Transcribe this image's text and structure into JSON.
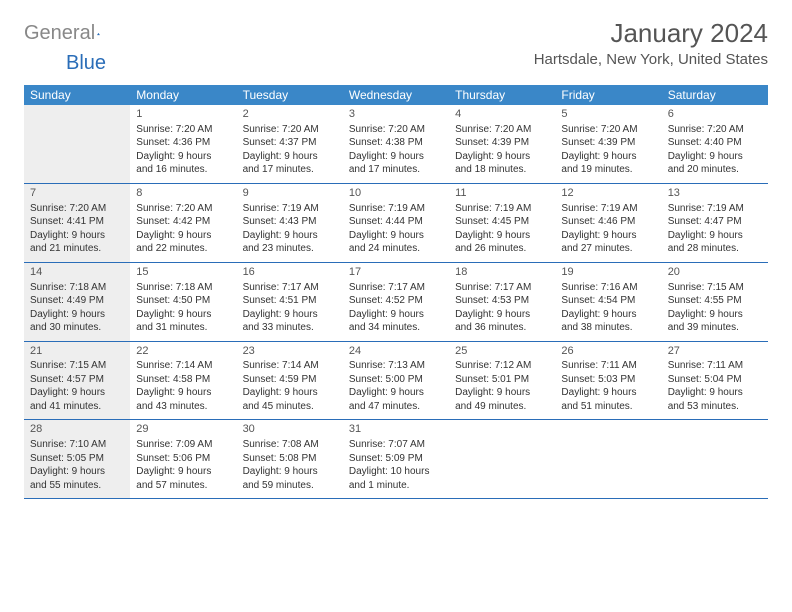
{
  "logo": {
    "general": "General",
    "blue": "Blue"
  },
  "title": "January 2024",
  "location": "Hartsdale, New York, United States",
  "colors": {
    "header_bg": "#3a87c8",
    "border": "#2a6db8",
    "shade": "#eeeeee"
  },
  "weekdays": [
    "Sunday",
    "Monday",
    "Tuesday",
    "Wednesday",
    "Thursday",
    "Friday",
    "Saturday"
  ],
  "weeks": [
    [
      {
        "n": "",
        "shade": true,
        "sr": "",
        "ss": "",
        "dl": ""
      },
      {
        "n": "1",
        "sr": "Sunrise: 7:20 AM",
        "ss": "Sunset: 4:36 PM",
        "dl": "Daylight: 9 hours and 16 minutes."
      },
      {
        "n": "2",
        "sr": "Sunrise: 7:20 AM",
        "ss": "Sunset: 4:37 PM",
        "dl": "Daylight: 9 hours and 17 minutes."
      },
      {
        "n": "3",
        "sr": "Sunrise: 7:20 AM",
        "ss": "Sunset: 4:38 PM",
        "dl": "Daylight: 9 hours and 17 minutes."
      },
      {
        "n": "4",
        "sr": "Sunrise: 7:20 AM",
        "ss": "Sunset: 4:39 PM",
        "dl": "Daylight: 9 hours and 18 minutes."
      },
      {
        "n": "5",
        "sr": "Sunrise: 7:20 AM",
        "ss": "Sunset: 4:39 PM",
        "dl": "Daylight: 9 hours and 19 minutes."
      },
      {
        "n": "6",
        "sr": "Sunrise: 7:20 AM",
        "ss": "Sunset: 4:40 PM",
        "dl": "Daylight: 9 hours and 20 minutes."
      }
    ],
    [
      {
        "n": "7",
        "shade": true,
        "sr": "Sunrise: 7:20 AM",
        "ss": "Sunset: 4:41 PM",
        "dl": "Daylight: 9 hours and 21 minutes."
      },
      {
        "n": "8",
        "sr": "Sunrise: 7:20 AM",
        "ss": "Sunset: 4:42 PM",
        "dl": "Daylight: 9 hours and 22 minutes."
      },
      {
        "n": "9",
        "sr": "Sunrise: 7:19 AM",
        "ss": "Sunset: 4:43 PM",
        "dl": "Daylight: 9 hours and 23 minutes."
      },
      {
        "n": "10",
        "sr": "Sunrise: 7:19 AM",
        "ss": "Sunset: 4:44 PM",
        "dl": "Daylight: 9 hours and 24 minutes."
      },
      {
        "n": "11",
        "sr": "Sunrise: 7:19 AM",
        "ss": "Sunset: 4:45 PM",
        "dl": "Daylight: 9 hours and 26 minutes."
      },
      {
        "n": "12",
        "sr": "Sunrise: 7:19 AM",
        "ss": "Sunset: 4:46 PM",
        "dl": "Daylight: 9 hours and 27 minutes."
      },
      {
        "n": "13",
        "sr": "Sunrise: 7:19 AM",
        "ss": "Sunset: 4:47 PM",
        "dl": "Daylight: 9 hours and 28 minutes."
      }
    ],
    [
      {
        "n": "14",
        "shade": true,
        "sr": "Sunrise: 7:18 AM",
        "ss": "Sunset: 4:49 PM",
        "dl": "Daylight: 9 hours and 30 minutes."
      },
      {
        "n": "15",
        "sr": "Sunrise: 7:18 AM",
        "ss": "Sunset: 4:50 PM",
        "dl": "Daylight: 9 hours and 31 minutes."
      },
      {
        "n": "16",
        "sr": "Sunrise: 7:17 AM",
        "ss": "Sunset: 4:51 PM",
        "dl": "Daylight: 9 hours and 33 minutes."
      },
      {
        "n": "17",
        "sr": "Sunrise: 7:17 AM",
        "ss": "Sunset: 4:52 PM",
        "dl": "Daylight: 9 hours and 34 minutes."
      },
      {
        "n": "18",
        "sr": "Sunrise: 7:17 AM",
        "ss": "Sunset: 4:53 PM",
        "dl": "Daylight: 9 hours and 36 minutes."
      },
      {
        "n": "19",
        "sr": "Sunrise: 7:16 AM",
        "ss": "Sunset: 4:54 PM",
        "dl": "Daylight: 9 hours and 38 minutes."
      },
      {
        "n": "20",
        "sr": "Sunrise: 7:15 AM",
        "ss": "Sunset: 4:55 PM",
        "dl": "Daylight: 9 hours and 39 minutes."
      }
    ],
    [
      {
        "n": "21",
        "shade": true,
        "sr": "Sunrise: 7:15 AM",
        "ss": "Sunset: 4:57 PM",
        "dl": "Daylight: 9 hours and 41 minutes."
      },
      {
        "n": "22",
        "sr": "Sunrise: 7:14 AM",
        "ss": "Sunset: 4:58 PM",
        "dl": "Daylight: 9 hours and 43 minutes."
      },
      {
        "n": "23",
        "sr": "Sunrise: 7:14 AM",
        "ss": "Sunset: 4:59 PM",
        "dl": "Daylight: 9 hours and 45 minutes."
      },
      {
        "n": "24",
        "sr": "Sunrise: 7:13 AM",
        "ss": "Sunset: 5:00 PM",
        "dl": "Daylight: 9 hours and 47 minutes."
      },
      {
        "n": "25",
        "sr": "Sunrise: 7:12 AM",
        "ss": "Sunset: 5:01 PM",
        "dl": "Daylight: 9 hours and 49 minutes."
      },
      {
        "n": "26",
        "sr": "Sunrise: 7:11 AM",
        "ss": "Sunset: 5:03 PM",
        "dl": "Daylight: 9 hours and 51 minutes."
      },
      {
        "n": "27",
        "sr": "Sunrise: 7:11 AM",
        "ss": "Sunset: 5:04 PM",
        "dl": "Daylight: 9 hours and 53 minutes."
      }
    ],
    [
      {
        "n": "28",
        "shade": true,
        "sr": "Sunrise: 7:10 AM",
        "ss": "Sunset: 5:05 PM",
        "dl": "Daylight: 9 hours and 55 minutes."
      },
      {
        "n": "29",
        "sr": "Sunrise: 7:09 AM",
        "ss": "Sunset: 5:06 PM",
        "dl": "Daylight: 9 hours and 57 minutes."
      },
      {
        "n": "30",
        "sr": "Sunrise: 7:08 AM",
        "ss": "Sunset: 5:08 PM",
        "dl": "Daylight: 9 hours and 59 minutes."
      },
      {
        "n": "31",
        "sr": "Sunrise: 7:07 AM",
        "ss": "Sunset: 5:09 PM",
        "dl": "Daylight: 10 hours and 1 minute."
      },
      {
        "n": "",
        "sr": "",
        "ss": "",
        "dl": ""
      },
      {
        "n": "",
        "sr": "",
        "ss": "",
        "dl": ""
      },
      {
        "n": "",
        "sr": "",
        "ss": "",
        "dl": ""
      }
    ]
  ]
}
